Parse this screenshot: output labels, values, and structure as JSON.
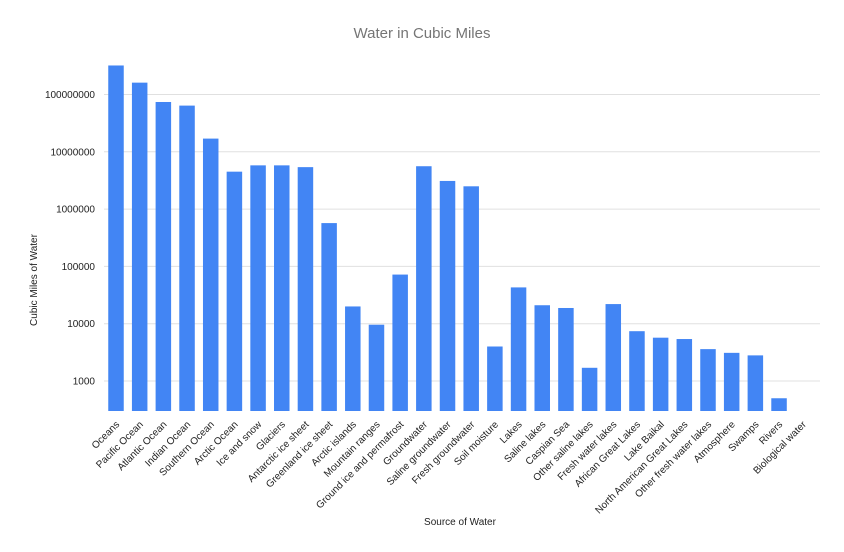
{
  "chart_data": {
    "type": "bar",
    "title": "Water in Cubic Miles",
    "xlabel": "Source of Water",
    "ylabel": "Cubic Miles of Water",
    "yscale": "log",
    "ylim": [
      300,
      400000000
    ],
    "yticks": [
      1000,
      10000,
      100000,
      1000000,
      10000000,
      100000000
    ],
    "ytick_labels": [
      "1000",
      "10000",
      "100000",
      "1000000",
      "10000000",
      "100000000"
    ],
    "grid": true,
    "bar_color": "#4285f4",
    "categories": [
      "Oceans",
      "Pacific Ocean",
      "Atlantic Ocean",
      "Indian Ocean",
      "Southern Ocean",
      "Arctic Ocean",
      "Ice and snow",
      "Glaciers",
      "Antarctic ice sheet",
      "Greenland ice sheet",
      "Arctic islands",
      "Mountain ranges",
      "Ground ice and permafrost",
      "Groundwater",
      "Saline groundwater",
      "Fresh groundwater",
      "Soil moisture",
      "Lakes",
      "Saline lakes",
      "Caspian Sea",
      "Other saline lakes",
      "Fresh water lakes",
      "African Great Lakes",
      "Lake Baikal",
      "North American Great Lakes",
      "Other fresh water lakes",
      "Atmosphere",
      "Swamps",
      "Rivers",
      "Biological water"
    ],
    "values": [
      321000000,
      161000000,
      74000000,
      64000000,
      17000000,
      4500000,
      5800000,
      5800000,
      5400000,
      570000,
      20000,
      9600,
      72000,
      5600000,
      3100000,
      2500000,
      4000,
      43000,
      21000,
      18800,
      1700,
      22000,
      7400,
      5700,
      5400,
      3600,
      3100,
      2800,
      500,
      270
    ]
  }
}
